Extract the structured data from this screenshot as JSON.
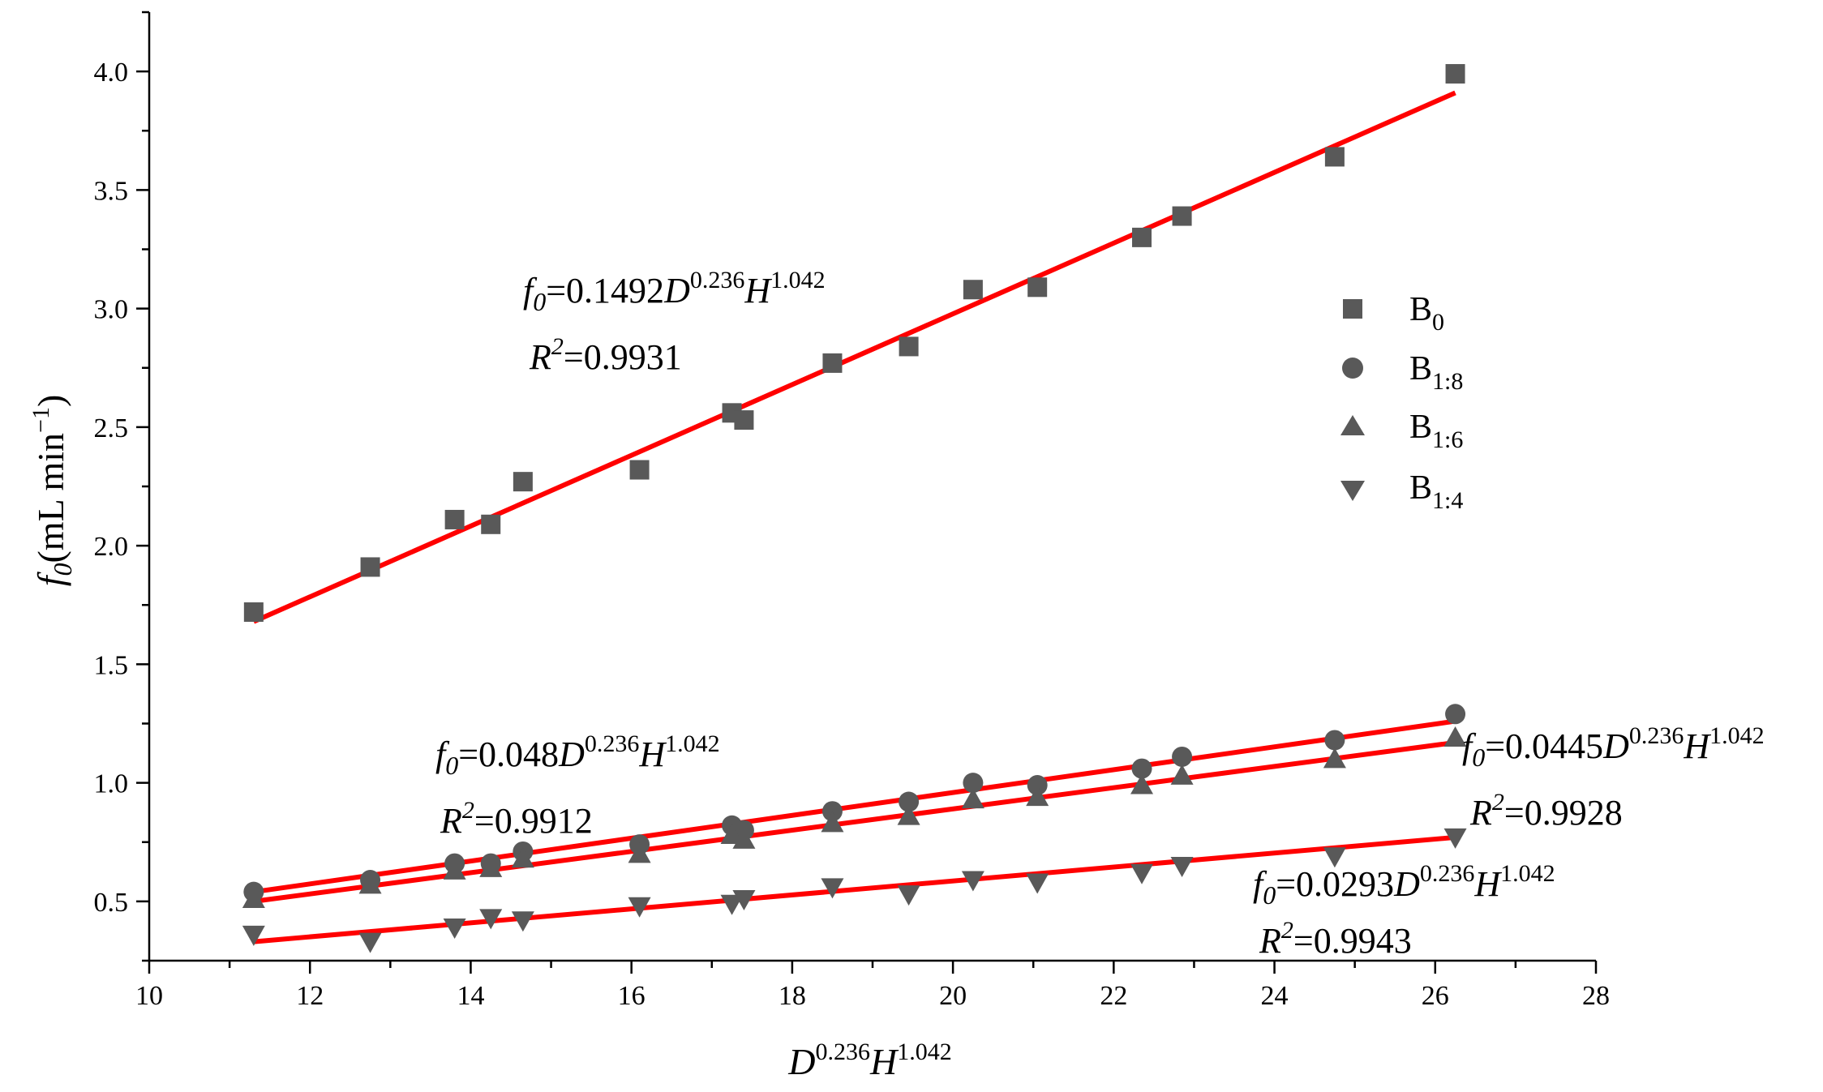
{
  "chart_data": {
    "type": "scatter",
    "title": "",
    "xlabel": {
      "base": "D",
      "exp1": "0.236",
      "mid": "H",
      "exp2": "1.042"
    },
    "ylabel": {
      "f": "f",
      "sub": "0",
      "unit": "(mL min",
      "exp": "−1",
      "close": ")"
    },
    "xlim": [
      10,
      28
    ],
    "ylim": [
      0.25,
      4.25
    ],
    "x_ticks": [
      10,
      12,
      14,
      16,
      18,
      20,
      22,
      24,
      26,
      28
    ],
    "x_tick_labels": [
      "10",
      "12",
      "14",
      "16",
      "18",
      "20",
      "22",
      "24",
      "26",
      "28"
    ],
    "y_ticks": [
      0.5,
      1.0,
      1.5,
      2.0,
      2.5,
      3.0,
      3.5,
      4.0
    ],
    "y_tick_labels": [
      "0.5",
      "1.0",
      "1.5",
      "2.0",
      "2.5",
      "3.0",
      "3.5",
      "4.0"
    ],
    "grid": false,
    "legend_position": "right-center",
    "fit_color": "#ff0000",
    "marker_color": "#595959",
    "x": [
      11.3,
      12.75,
      13.8,
      14.25,
      14.65,
      16.1,
      17.25,
      17.4,
      18.5,
      19.45,
      20.25,
      21.05,
      22.35,
      22.85,
      24.75,
      26.25
    ],
    "series": [
      {
        "name": "B",
        "name_sub": "0",
        "marker": "square",
        "values": [
          1.72,
          1.91,
          2.11,
          2.09,
          2.27,
          2.32,
          2.56,
          2.53,
          2.77,
          2.84,
          3.08,
          3.09,
          3.3,
          3.39,
          3.64,
          3.99
        ],
        "fit": [
          1.68,
          3.91
        ]
      },
      {
        "name": "B",
        "name_sub": "1:8",
        "marker": "circle",
        "values": [
          0.54,
          0.59,
          0.66,
          0.66,
          0.71,
          0.74,
          0.82,
          0.8,
          0.88,
          0.92,
          1.0,
          0.99,
          1.06,
          1.11,
          1.18,
          1.29
        ],
        "fit": [
          0.54,
          1.26
        ]
      },
      {
        "name": "B",
        "name_sub": "1:6",
        "marker": "triangle-up",
        "values": [
          0.51,
          0.57,
          0.63,
          0.64,
          0.68,
          0.7,
          0.78,
          0.76,
          0.83,
          0.86,
          0.93,
          0.94,
          0.99,
          1.03,
          1.1,
          1.19
        ],
        "fit": [
          0.5,
          1.17
        ]
      },
      {
        "name": "B",
        "name_sub": "1:4",
        "marker": "triangle-down",
        "values": [
          0.36,
          0.33,
          0.39,
          0.43,
          0.42,
          0.48,
          0.49,
          0.51,
          0.56,
          0.53,
          0.59,
          0.58,
          0.62,
          0.65,
          0.69,
          0.77
        ],
        "fit": [
          0.33,
          0.77
        ]
      }
    ],
    "annotations": [
      {
        "f": "f",
        "sub": "0",
        "coef": "=0.1492",
        "d": "D",
        "e1": "0.236",
        "h": "H",
        "e2": "1.042",
        "r": "R",
        "r_sup": "2",
        "r_val": "=0.9931"
      },
      {
        "f": "f",
        "sub": "0",
        "coef": "=0.048",
        "d": "D",
        "e1": "0.236",
        "h": "H",
        "e2": "1.042",
        "r": "R",
        "r_sup": "2",
        "r_val": "=0.9912"
      },
      {
        "f": "f",
        "sub": "0",
        "coef": "=0.0445",
        "d": "D",
        "e1": "0.236",
        "h": "H",
        "e2": "1.042",
        "r": "R",
        "r_sup": "2",
        "r_val": "=0.9928"
      },
      {
        "f": "f",
        "sub": "0",
        "coef": "=0.0293",
        "d": "D",
        "e1": "0.236",
        "h": "H",
        "e2": "1.042",
        "r": "R",
        "r_sup": "2",
        "r_val": "=0.9943"
      }
    ]
  }
}
